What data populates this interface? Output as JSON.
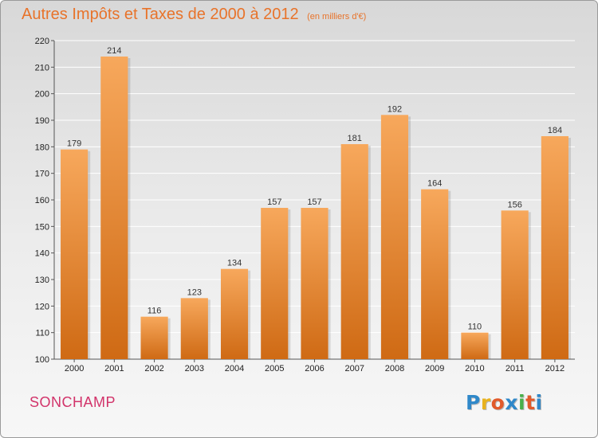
{
  "title": "Autres Impôts et Taxes de 2000 à 2012",
  "subtitle": "(en milliers d'€)",
  "commune": "SONCHAMP",
  "logo": {
    "letters": [
      "P",
      "r",
      "o",
      "x",
      "i",
      "t",
      "i"
    ],
    "colors": [
      "#2f88c9",
      "#e8b21e",
      "#e15a2b",
      "#2f88c9",
      "#49b04a",
      "#e15a2b",
      "#2f88c9"
    ]
  },
  "colors": {
    "bar_top": "#f7a85c",
    "bar_bottom": "#cf6a14",
    "grid": "#ffffff",
    "title": "#e8732a",
    "commune": "#d2336a"
  },
  "chart_data": {
    "type": "bar",
    "categories": [
      "2000",
      "2001",
      "2002",
      "2003",
      "2004",
      "2005",
      "2006",
      "2007",
      "2008",
      "2009",
      "2010",
      "2011",
      "2012"
    ],
    "values": [
      179,
      214,
      116,
      123,
      134,
      157,
      157,
      181,
      192,
      164,
      110,
      156,
      184
    ],
    "data_labels": [
      "179",
      "214",
      "116",
      "123",
      "134",
      "157",
      "157",
      "181",
      "192",
      "164",
      "110",
      "156",
      "184"
    ],
    "ylim": [
      100,
      220
    ],
    "yticks": [
      "100",
      "110",
      "120",
      "130",
      "140",
      "150",
      "160",
      "170",
      "180",
      "190",
      "200",
      "210",
      "220"
    ],
    "grid": true,
    "legend": "none"
  }
}
